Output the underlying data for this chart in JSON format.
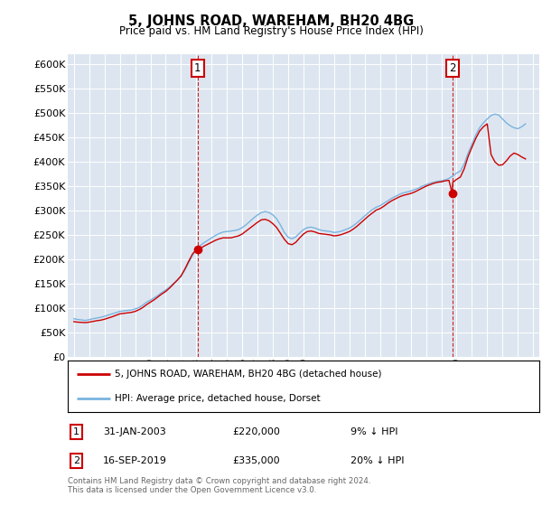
{
  "title": "5, JOHNS ROAD, WAREHAM, BH20 4BG",
  "subtitle": "Price paid vs. HM Land Registry's House Price Index (HPI)",
  "legend_line1": "5, JOHNS ROAD, WAREHAM, BH20 4BG (detached house)",
  "legend_line2": "HPI: Average price, detached house, Dorset",
  "footer": "Contains HM Land Registry data © Crown copyright and database right 2024.\nThis data is licensed under the Open Government Licence v3.0.",
  "annotation1": {
    "label": "1",
    "date_str": "31-JAN-2003",
    "price_str": "£220,000",
    "hpi_str": "9% ↓ HPI"
  },
  "annotation2": {
    "label": "2",
    "date_str": "16-SEP-2019",
    "price_str": "£335,000",
    "hpi_str": "20% ↓ HPI"
  },
  "sale1": {
    "year": 2003.08,
    "price": 220000
  },
  "sale2": {
    "year": 2019.71,
    "price": 335000
  },
  "hpi_color": "#7ab3df",
  "price_color": "#cc0000",
  "annotation_color": "#cc0000",
  "bg_color": "#dde6f0",
  "grid_color": "#c8d4e4",
  "ylim": [
    0,
    620000
  ],
  "yticks": [
    0,
    50000,
    100000,
    150000,
    200000,
    250000,
    300000,
    350000,
    400000,
    450000,
    500000,
    550000,
    600000
  ],
  "xlim_min": 1994.6,
  "xlim_max": 2025.4,
  "hpi_data": [
    [
      1995.0,
      78000
    ],
    [
      1995.25,
      76500
    ],
    [
      1995.5,
      75500
    ],
    [
      1995.75,
      74500
    ],
    [
      1996.0,
      76000
    ],
    [
      1996.25,
      78000
    ],
    [
      1996.5,
      79500
    ],
    [
      1996.75,
      81000
    ],
    [
      1997.0,
      83000
    ],
    [
      1997.25,
      85500
    ],
    [
      1997.5,
      88000
    ],
    [
      1997.75,
      90500
    ],
    [
      1998.0,
      93000
    ],
    [
      1998.25,
      94000
    ],
    [
      1998.5,
      95000
    ],
    [
      1998.75,
      96000
    ],
    [
      1999.0,
      98000
    ],
    [
      1999.25,
      101000
    ],
    [
      1999.5,
      106000
    ],
    [
      1999.75,
      112000
    ],
    [
      2000.0,
      116000
    ],
    [
      2000.25,
      121000
    ],
    [
      2000.5,
      126000
    ],
    [
      2000.75,
      132000
    ],
    [
      2001.0,
      137000
    ],
    [
      2001.25,
      143000
    ],
    [
      2001.5,
      150000
    ],
    [
      2001.75,
      157000
    ],
    [
      2002.0,
      165000
    ],
    [
      2002.25,
      178000
    ],
    [
      2002.5,
      193000
    ],
    [
      2002.75,
      208000
    ],
    [
      2003.0,
      220000
    ],
    [
      2003.25,
      228000
    ],
    [
      2003.5,
      234000
    ],
    [
      2003.75,
      239000
    ],
    [
      2004.0,
      244000
    ],
    [
      2004.25,
      249000
    ],
    [
      2004.5,
      253000
    ],
    [
      2004.75,
      256000
    ],
    [
      2005.0,
      257000
    ],
    [
      2005.25,
      258000
    ],
    [
      2005.5,
      259000
    ],
    [
      2005.75,
      261000
    ],
    [
      2006.0,
      265000
    ],
    [
      2006.25,
      271000
    ],
    [
      2006.5,
      278000
    ],
    [
      2006.75,
      285000
    ],
    [
      2007.0,
      291000
    ],
    [
      2007.25,
      296000
    ],
    [
      2007.5,
      298000
    ],
    [
      2007.75,
      296000
    ],
    [
      2008.0,
      291000
    ],
    [
      2008.25,
      283000
    ],
    [
      2008.5,
      270000
    ],
    [
      2008.75,
      255000
    ],
    [
      2009.0,
      245000
    ],
    [
      2009.25,
      242000
    ],
    [
      2009.5,
      246000
    ],
    [
      2009.75,
      254000
    ],
    [
      2010.0,
      261000
    ],
    [
      2010.25,
      265000
    ],
    [
      2010.5,
      266000
    ],
    [
      2010.75,
      264000
    ],
    [
      2011.0,
      261000
    ],
    [
      2011.25,
      259000
    ],
    [
      2011.5,
      258000
    ],
    [
      2011.75,
      257000
    ],
    [
      2012.0,
      255000
    ],
    [
      2012.25,
      256000
    ],
    [
      2012.5,
      258000
    ],
    [
      2012.75,
      261000
    ],
    [
      2013.0,
      264000
    ],
    [
      2013.25,
      269000
    ],
    [
      2013.5,
      275000
    ],
    [
      2013.75,
      282000
    ],
    [
      2014.0,
      289000
    ],
    [
      2014.25,
      296000
    ],
    [
      2014.5,
      302000
    ],
    [
      2014.75,
      307000
    ],
    [
      2015.0,
      310000
    ],
    [
      2015.25,
      315000
    ],
    [
      2015.5,
      320000
    ],
    [
      2015.75,
      325000
    ],
    [
      2016.0,
      329000
    ],
    [
      2016.25,
      333000
    ],
    [
      2016.5,
      336000
    ],
    [
      2016.75,
      338000
    ],
    [
      2017.0,
      340000
    ],
    [
      2017.25,
      343000
    ],
    [
      2017.5,
      346000
    ],
    [
      2017.75,
      350000
    ],
    [
      2018.0,
      353000
    ],
    [
      2018.25,
      356000
    ],
    [
      2018.5,
      358000
    ],
    [
      2018.75,
      360000
    ],
    [
      2019.0,
      361000
    ],
    [
      2019.25,
      363000
    ],
    [
      2019.5,
      366000
    ],
    [
      2019.75,
      371000
    ],
    [
      2020.0,
      377000
    ],
    [
      2020.25,
      381000
    ],
    [
      2020.5,
      396000
    ],
    [
      2020.75,
      418000
    ],
    [
      2021.0,
      436000
    ],
    [
      2021.25,
      455000
    ],
    [
      2021.5,
      470000
    ],
    [
      2021.75,
      480000
    ],
    [
      2022.0,
      488000
    ],
    [
      2022.25,
      495000
    ],
    [
      2022.5,
      498000
    ],
    [
      2022.75,
      496000
    ],
    [
      2023.0,
      488000
    ],
    [
      2023.25,
      480000
    ],
    [
      2023.5,
      474000
    ],
    [
      2023.75,
      470000
    ],
    [
      2024.0,
      468000
    ],
    [
      2024.25,
      472000
    ],
    [
      2024.5,
      478000
    ]
  ],
  "price_data": [
    [
      1995.0,
      72000
    ],
    [
      1995.25,
      71000
    ],
    [
      1995.5,
      70500
    ],
    [
      1995.75,
      70000
    ],
    [
      1996.0,
      71000
    ],
    [
      1996.25,
      72500
    ],
    [
      1996.5,
      74000
    ],
    [
      1996.75,
      75000
    ],
    [
      1997.0,
      77000
    ],
    [
      1997.25,
      79500
    ],
    [
      1997.5,
      82000
    ],
    [
      1997.75,
      85000
    ],
    [
      1998.0,
      88000
    ],
    [
      1998.25,
      89000
    ],
    [
      1998.5,
      90000
    ],
    [
      1998.75,
      91000
    ],
    [
      1999.0,
      93000
    ],
    [
      1999.25,
      96500
    ],
    [
      1999.5,
      101000
    ],
    [
      1999.75,
      107000
    ],
    [
      2000.0,
      112000
    ],
    [
      2000.25,
      117000
    ],
    [
      2000.5,
      123000
    ],
    [
      2000.75,
      129000
    ],
    [
      2001.0,
      134000
    ],
    [
      2001.25,
      141000
    ],
    [
      2001.5,
      149000
    ],
    [
      2001.75,
      157000
    ],
    [
      2002.0,
      166000
    ],
    [
      2002.25,
      180000
    ],
    [
      2002.5,
      196000
    ],
    [
      2002.75,
      211000
    ],
    [
      2003.0,
      220000
    ],
    [
      2003.08,
      220000
    ],
    [
      2003.25,
      222000
    ],
    [
      2003.5,
      227000
    ],
    [
      2003.75,
      231000
    ],
    [
      2004.0,
      235000
    ],
    [
      2004.25,
      239000
    ],
    [
      2004.5,
      242000
    ],
    [
      2004.75,
      244000
    ],
    [
      2005.0,
      244000
    ],
    [
      2005.25,
      244000
    ],
    [
      2005.5,
      246000
    ],
    [
      2005.75,
      248000
    ],
    [
      2006.0,
      252000
    ],
    [
      2006.25,
      258000
    ],
    [
      2006.5,
      264000
    ],
    [
      2006.75,
      270000
    ],
    [
      2007.0,
      276000
    ],
    [
      2007.25,
      281000
    ],
    [
      2007.5,
      282000
    ],
    [
      2007.75,
      279000
    ],
    [
      2008.0,
      273000
    ],
    [
      2008.25,
      265000
    ],
    [
      2008.5,
      253000
    ],
    [
      2008.75,
      241000
    ],
    [
      2009.0,
      232000
    ],
    [
      2009.25,
      230000
    ],
    [
      2009.5,
      235000
    ],
    [
      2009.75,
      244000
    ],
    [
      2010.0,
      252000
    ],
    [
      2010.25,
      257000
    ],
    [
      2010.5,
      258000
    ],
    [
      2010.75,
      256000
    ],
    [
      2011.0,
      253000
    ],
    [
      2011.25,
      252000
    ],
    [
      2011.5,
      251000
    ],
    [
      2011.75,
      250000
    ],
    [
      2012.0,
      248000
    ],
    [
      2012.25,
      249000
    ],
    [
      2012.5,
      251000
    ],
    [
      2012.75,
      254000
    ],
    [
      2013.0,
      257000
    ],
    [
      2013.25,
      262000
    ],
    [
      2013.5,
      268000
    ],
    [
      2013.75,
      275000
    ],
    [
      2014.0,
      282000
    ],
    [
      2014.25,
      289000
    ],
    [
      2014.5,
      295000
    ],
    [
      2014.75,
      301000
    ],
    [
      2015.0,
      304000
    ],
    [
      2015.25,
      309000
    ],
    [
      2015.5,
      315000
    ],
    [
      2015.75,
      320000
    ],
    [
      2016.0,
      324000
    ],
    [
      2016.25,
      328000
    ],
    [
      2016.5,
      331000
    ],
    [
      2016.75,
      333000
    ],
    [
      2017.0,
      335000
    ],
    [
      2017.25,
      338000
    ],
    [
      2017.5,
      342000
    ],
    [
      2017.75,
      346000
    ],
    [
      2018.0,
      350000
    ],
    [
      2018.25,
      353000
    ],
    [
      2018.5,
      356000
    ],
    [
      2018.75,
      358000
    ],
    [
      2019.0,
      359000
    ],
    [
      2019.25,
      361000
    ],
    [
      2019.5,
      362000
    ],
    [
      2019.71,
      335000
    ],
    [
      2019.75,
      358000
    ],
    [
      2020.0,
      364000
    ],
    [
      2020.25,
      369000
    ],
    [
      2020.5,
      386000
    ],
    [
      2020.75,
      411000
    ],
    [
      2021.0,
      430000
    ],
    [
      2021.25,
      448000
    ],
    [
      2021.5,
      463000
    ],
    [
      2021.75,
      472000
    ],
    [
      2022.0,
      478000
    ],
    [
      2022.25,
      415000
    ],
    [
      2022.5,
      400000
    ],
    [
      2022.75,
      393000
    ],
    [
      2023.0,
      394000
    ],
    [
      2023.25,
      402000
    ],
    [
      2023.5,
      412000
    ],
    [
      2023.75,
      418000
    ],
    [
      2024.0,
      415000
    ],
    [
      2024.25,
      410000
    ],
    [
      2024.5,
      406000
    ]
  ]
}
